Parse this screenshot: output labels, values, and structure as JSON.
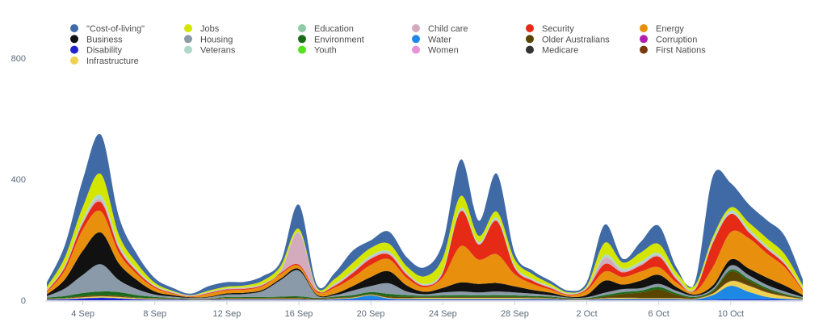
{
  "chart_data": {
    "type": "area",
    "stacked": true,
    "curve": "smooth",
    "grid": false,
    "legend_position": "top",
    "ylim": [
      0,
      800
    ],
    "y_ticks": [
      0,
      400,
      800
    ],
    "x_tick_labels": [
      "4 Sep",
      "8 Sep",
      "12 Sep",
      "16 Sep",
      "20 Sep",
      "24 Sep",
      "28 Sep",
      "2 Oct",
      "6 Oct",
      "10 Oct"
    ],
    "x": [
      "2 Sep",
      "3 Sep",
      "4 Sep",
      "5 Sep",
      "6 Sep",
      "7 Sep",
      "8 Sep",
      "9 Sep",
      "10 Sep",
      "11 Sep",
      "12 Sep",
      "13 Sep",
      "14 Sep",
      "15 Sep",
      "16 Sep",
      "17 Sep",
      "18 Sep",
      "19 Sep",
      "20 Sep",
      "21 Sep",
      "22 Sep",
      "23 Sep",
      "24 Sep",
      "25 Sep",
      "26 Sep",
      "27 Sep",
      "28 Sep",
      "29 Sep",
      "30 Sep",
      "1 Oct",
      "2 Oct",
      "3 Oct",
      "4 Oct",
      "5 Oct",
      "6 Oct",
      "7 Oct",
      "8 Oct",
      "9 Oct",
      "10 Oct",
      "11 Oct",
      "12 Oct",
      "13 Oct",
      "14 Oct"
    ],
    "series": [
      {
        "name": "Disability",
        "color": "#2222cc",
        "values": [
          2,
          3,
          6,
          8,
          6,
          3,
          2,
          2,
          1,
          1,
          2,
          2,
          2,
          2,
          2,
          1,
          2,
          2,
          2,
          2,
          2,
          2,
          2,
          2,
          2,
          2,
          2,
          2,
          2,
          1,
          1,
          2,
          2,
          2,
          2,
          2,
          1,
          2,
          3,
          3,
          3,
          2,
          1
        ]
      },
      {
        "name": "Water",
        "color": "#1e88e5",
        "values": [
          1,
          1,
          1,
          1,
          1,
          1,
          1,
          1,
          1,
          1,
          1,
          1,
          1,
          1,
          1,
          1,
          2,
          5,
          14,
          4,
          2,
          2,
          2,
          2,
          2,
          2,
          2,
          2,
          2,
          1,
          1,
          2,
          2,
          2,
          2,
          2,
          2,
          15,
          45,
          25,
          8,
          3,
          1
        ]
      },
      {
        "name": "Infrastructure",
        "color": "#f0d050",
        "values": [
          1,
          2,
          3,
          4,
          4,
          3,
          2,
          1,
          1,
          1,
          2,
          2,
          2,
          2,
          2,
          1,
          2,
          2,
          2,
          2,
          3,
          4,
          4,
          4,
          4,
          4,
          4,
          3,
          2,
          1,
          1,
          3,
          4,
          3,
          3,
          3,
          2,
          5,
          15,
          20,
          15,
          8,
          2
        ]
      },
      {
        "name": "First Nations",
        "color": "#7a3a10",
        "values": [
          1,
          1,
          2,
          2,
          2,
          1,
          1,
          1,
          1,
          1,
          1,
          1,
          1,
          1,
          1,
          1,
          1,
          1,
          1,
          1,
          1,
          1,
          1,
          1,
          1,
          1,
          1,
          1,
          1,
          1,
          1,
          1,
          1,
          1,
          1,
          1,
          1,
          1,
          2,
          2,
          2,
          1,
          1
        ]
      },
      {
        "name": "Older Australians",
        "color": "#5a4500",
        "values": [
          1,
          1,
          2,
          2,
          2,
          1,
          1,
          1,
          1,
          1,
          2,
          2,
          2,
          3,
          3,
          2,
          2,
          2,
          2,
          4,
          3,
          2,
          2,
          2,
          2,
          2,
          2,
          2,
          2,
          1,
          1,
          4,
          12,
          18,
          28,
          10,
          2,
          6,
          30,
          15,
          8,
          4,
          1
        ]
      },
      {
        "name": "Environment",
        "color": "#1a6b1a",
        "values": [
          3,
          6,
          10,
          12,
          12,
          8,
          4,
          2,
          1,
          1,
          3,
          3,
          3,
          3,
          4,
          2,
          3,
          5,
          6,
          8,
          6,
          4,
          5,
          6,
          5,
          6,
          5,
          4,
          3,
          2,
          2,
          5,
          6,
          6,
          8,
          5,
          3,
          4,
          6,
          6,
          5,
          3,
          2
        ]
      },
      {
        "name": "Housing",
        "color": "#8a9aa8",
        "values": [
          5,
          25,
          60,
          90,
          40,
          20,
          8,
          4,
          2,
          4,
          8,
          10,
          20,
          55,
          85,
          8,
          5,
          15,
          20,
          35,
          12,
          5,
          10,
          12,
          10,
          12,
          10,
          8,
          5,
          2,
          3,
          8,
          10,
          8,
          10,
          8,
          4,
          6,
          14,
          12,
          10,
          8,
          3
        ]
      },
      {
        "name": "Business",
        "color": "#111111",
        "values": [
          5,
          30,
          80,
          105,
          55,
          30,
          10,
          5,
          2,
          2,
          4,
          4,
          4,
          5,
          6,
          3,
          5,
          15,
          30,
          40,
          20,
          8,
          15,
          30,
          28,
          28,
          20,
          12,
          8,
          3,
          8,
          40,
          15,
          25,
          30,
          12,
          4,
          10,
          20,
          22,
          24,
          20,
          6
        ]
      },
      {
        "name": "Energy",
        "color": "#e8900e",
        "values": [
          8,
          30,
          70,
          70,
          35,
          20,
          12,
          5,
          2,
          10,
          10,
          10,
          12,
          15,
          10,
          8,
          20,
          28,
          40,
          40,
          25,
          15,
          35,
          120,
          80,
          95,
          40,
          20,
          10,
          5,
          15,
          30,
          25,
          30,
          25,
          15,
          10,
          60,
          90,
          100,
          80,
          60,
          15
        ]
      },
      {
        "name": "Security",
        "color": "#e52a15",
        "values": [
          3,
          10,
          20,
          30,
          15,
          8,
          4,
          2,
          1,
          2,
          3,
          3,
          3,
          4,
          4,
          4,
          6,
          15,
          20,
          15,
          10,
          5,
          15,
          115,
          50,
          110,
          20,
          10,
          5,
          2,
          5,
          25,
          15,
          20,
          35,
          10,
          5,
          80,
          60,
          20,
          15,
          10,
          3
        ]
      },
      {
        "name": "Child care",
        "color": "#d4aabd",
        "values": [
          2,
          3,
          5,
          8,
          5,
          3,
          2,
          2,
          2,
          2,
          2,
          3,
          3,
          5,
          105,
          5,
          5,
          4,
          5,
          5,
          4,
          3,
          3,
          3,
          3,
          3,
          3,
          3,
          3,
          2,
          2,
          20,
          5,
          5,
          4,
          4,
          2,
          2,
          2,
          2,
          2,
          2,
          2
        ]
      },
      {
        "name": "Veterans",
        "color": "#b0d8c8",
        "values": [
          2,
          5,
          10,
          15,
          10,
          5,
          3,
          2,
          1,
          2,
          2,
          2,
          2,
          3,
          3,
          2,
          3,
          5,
          6,
          6,
          4,
          3,
          6,
          8,
          6,
          8,
          6,
          4,
          3,
          2,
          3,
          10,
          8,
          8,
          8,
          5,
          3,
          8,
          10,
          10,
          8,
          6,
          2
        ]
      },
      {
        "name": "Jobs",
        "color": "#d4e600",
        "values": [
          10,
          25,
          40,
          70,
          30,
          20,
          8,
          3,
          1,
          4,
          5,
          6,
          10,
          15,
          10,
          4,
          15,
          25,
          25,
          25,
          20,
          25,
          40,
          40,
          20,
          20,
          20,
          15,
          8,
          3,
          5,
          40,
          20,
          30,
          30,
          15,
          10,
          10,
          10,
          20,
          25,
          25,
          10
        ]
      },
      {
        "name": "\"Cost-of-living\"",
        "color": "#3f6aa5",
        "values": [
          15,
          40,
          90,
          130,
          60,
          30,
          15,
          10,
          5,
          15,
          15,
          12,
          15,
          15,
          80,
          10,
          20,
          40,
          25,
          40,
          30,
          30,
          50,
          120,
          50,
          125,
          20,
          12,
          10,
          6,
          12,
          60,
          12,
          35,
          60,
          15,
          10,
          200,
          80,
          60,
          60,
          60,
          20
        ]
      }
    ]
  },
  "legend": {
    "items": [
      {
        "label": "\"Cost-of-living\"",
        "color": "#3f6aa5"
      },
      {
        "label": "Jobs",
        "color": "#d4e600"
      },
      {
        "label": "Education",
        "color": "#8ecca6"
      },
      {
        "label": "Child care",
        "color": "#d4aabd"
      },
      {
        "label": "Security",
        "color": "#e52a15"
      },
      {
        "label": "Energy",
        "color": "#e8900e"
      },
      {
        "label": "Business",
        "color": "#111111"
      },
      {
        "label": "Housing",
        "color": "#8a9aa8"
      },
      {
        "label": "Environment",
        "color": "#1a6b1a"
      },
      {
        "label": "Water",
        "color": "#1e88e5"
      },
      {
        "label": "Older Australians",
        "color": "#5a4500"
      },
      {
        "label": "Corruption",
        "color": "#b020b0"
      },
      {
        "label": "Disability",
        "color": "#2222cc"
      },
      {
        "label": "Veterans",
        "color": "#b0d8c8"
      },
      {
        "label": "Youth",
        "color": "#55e020"
      },
      {
        "label": "Women",
        "color": "#e890d8"
      },
      {
        "label": "Medicare",
        "color": "#333333"
      },
      {
        "label": "First Nations",
        "color": "#7a3a10"
      },
      {
        "label": "Infrastructure",
        "color": "#f0d050"
      }
    ]
  }
}
